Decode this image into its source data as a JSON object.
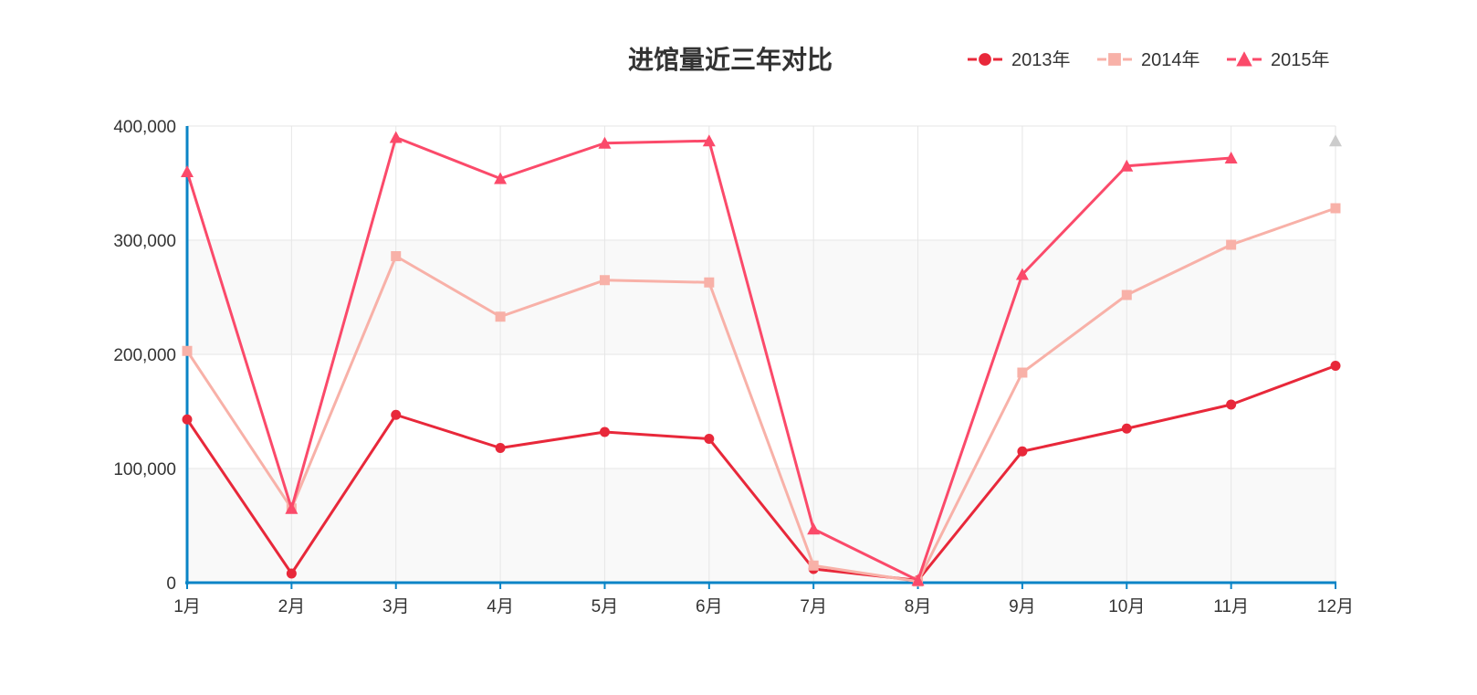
{
  "chart_data": {
    "type": "line",
    "title": "进馆量近三年对比",
    "xlabel": "",
    "ylabel": "",
    "categories": [
      "1月",
      "2月",
      "3月",
      "4月",
      "5月",
      "6月",
      "7月",
      "8月",
      "9月",
      "10月",
      "11月",
      "12月"
    ],
    "ylim": [
      0,
      400000
    ],
    "yticks": [
      0,
      100000,
      200000,
      300000,
      400000
    ],
    "ytick_labels": [
      "0",
      "100,000",
      "200,000",
      "300,000",
      "400,000"
    ],
    "grid": true,
    "legend_position": "top-right",
    "series": [
      {
        "name": "2013年",
        "color": "#e8283a",
        "marker": "circle",
        "values": [
          143000,
          8000,
          147000,
          118000,
          132000,
          126000,
          12000,
          2000,
          115000,
          135000,
          156000,
          190000
        ]
      },
      {
        "name": "2014年",
        "color": "#f8b1a8",
        "marker": "square",
        "values": [
          203000,
          65000,
          286000,
          233000,
          265000,
          263000,
          15000,
          1000,
          184000,
          252000,
          296000,
          328000
        ]
      },
      {
        "name": "2015年",
        "color": "#fb4a6a",
        "marker": "triangle",
        "values": [
          360000,
          65000,
          390000,
          354000,
          385000,
          387000,
          47000,
          2000,
          270000,
          365000,
          372000,
          null
        ]
      }
    ],
    "inactive_point": {
      "category": "12月",
      "value": 387000,
      "color": "#cccccc",
      "marker": "triangle"
    },
    "axis_color": "#0a84c6",
    "band_color": "#f9f9f9"
  }
}
